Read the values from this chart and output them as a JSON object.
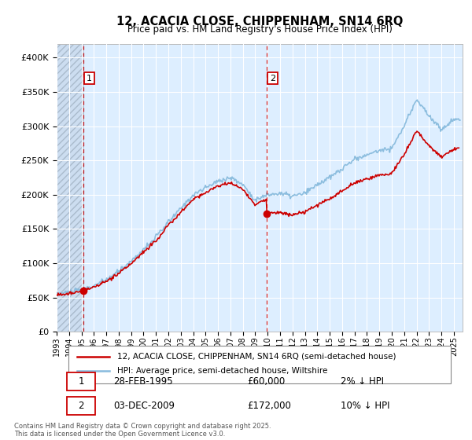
{
  "title_line1": "12, ACACIA CLOSE, CHIPPENHAM, SN14 6RQ",
  "title_line2": "Price paid vs. HM Land Registry's House Price Index (HPI)",
  "plot_bg_color": "#ddeeff",
  "hatch_color": "#c0cce0",
  "grid_color": "#ffffff",
  "hpi_color": "#88bbdd",
  "sold_color": "#cc0000",
  "marker_color": "#cc0000",
  "dashed_line_color": "#cc0000",
  "ylim": [
    0,
    420000
  ],
  "yticks": [
    0,
    50000,
    100000,
    150000,
    200000,
    250000,
    300000,
    350000,
    400000
  ],
  "ytick_labels": [
    "£0",
    "£50K",
    "£100K",
    "£150K",
    "£200K",
    "£250K",
    "£300K",
    "£350K",
    "£400K"
  ],
  "xlim_start": 1993.0,
  "xlim_end": 2025.7,
  "sale1_x": 1995.17,
  "sale1_y": 60000,
  "sale1_label": "1",
  "sale1_date": "28-FEB-1995",
  "sale1_price": "£60,000",
  "sale1_hpi": "2% ↓ HPI",
  "sale2_x": 2009.92,
  "sale2_y": 172000,
  "sale2_label": "2",
  "sale2_date": "03-DEC-2009",
  "sale2_price": "£172,000",
  "sale2_hpi": "10% ↓ HPI",
  "legend_sold": "12, ACACIA CLOSE, CHIPPENHAM, SN14 6RQ (semi-detached house)",
  "legend_hpi": "HPI: Average price, semi-detached house, Wiltshire",
  "footnote1": "Contains HM Land Registry data © Crown copyright and database right 2025.",
  "footnote2": "This data is licensed under the Open Government Licence v3.0.",
  "xticks": [
    1993,
    1994,
    1995,
    1996,
    1997,
    1998,
    1999,
    2000,
    2001,
    2002,
    2003,
    2004,
    2005,
    2006,
    2007,
    2008,
    2009,
    2010,
    2011,
    2012,
    2013,
    2014,
    2015,
    2016,
    2017,
    2018,
    2019,
    2020,
    2021,
    2022,
    2023,
    2024,
    2025
  ]
}
